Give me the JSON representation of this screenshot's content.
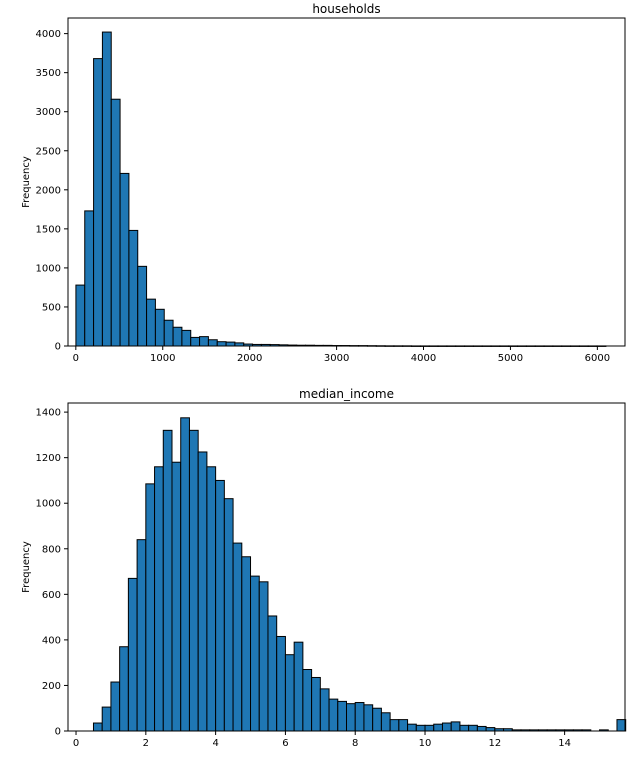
{
  "chart_data": [
    {
      "type": "bar",
      "title": "households",
      "xlabel": "",
      "ylabel": "Frequency",
      "xlim": [
        -90,
        6318
      ],
      "ylim": [
        0,
        4200
      ],
      "bin_start": 1,
      "bin_width": 101.62,
      "values": [
        780,
        1730,
        3680,
        4020,
        3160,
        2210,
        1480,
        1020,
        600,
        470,
        330,
        240,
        200,
        110,
        120,
        80,
        55,
        50,
        40,
        25,
        20,
        20,
        18,
        15,
        12,
        10,
        10,
        8,
        8,
        6,
        6,
        5,
        5,
        4,
        3,
        2,
        2,
        2,
        1,
        1,
        1,
        1,
        1,
        1,
        1,
        1,
        1,
        1,
        1,
        1,
        1,
        1,
        1,
        1,
        1,
        1,
        1,
        1,
        1,
        1
      ],
      "xticks": [
        0,
        1000,
        2000,
        3000,
        4000,
        5000,
        6000
      ],
      "yticks": [
        0,
        500,
        1000,
        1500,
        2000,
        2500,
        3000,
        3500,
        4000
      ],
      "bar_color": "#1f77b4",
      "edge_color": "#000000",
      "grid": false
    },
    {
      "type": "bar",
      "title": "median_income",
      "xlabel": "",
      "ylabel": "Frequency",
      "xlim": [
        -0.23,
        15.73
      ],
      "ylim": [
        0,
        1440
      ],
      "bin_start": 0.5,
      "bin_width": 0.25,
      "values": [
        35,
        105,
        215,
        370,
        670,
        840,
        1085,
        1160,
        1320,
        1180,
        1375,
        1320,
        1225,
        1160,
        1100,
        1020,
        825,
        765,
        680,
        655,
        505,
        415,
        335,
        390,
        270,
        235,
        185,
        140,
        130,
        120,
        125,
        115,
        100,
        80,
        50,
        50,
        30,
        25,
        25,
        30,
        35,
        40,
        25,
        25,
        20,
        15,
        10,
        10,
        5,
        5,
        5,
        5,
        5,
        5,
        5,
        5,
        5,
        0,
        5,
        0,
        50
      ],
      "xticks": [
        0,
        2,
        4,
        6,
        8,
        10,
        12,
        14
      ],
      "yticks": [
        0,
        200,
        400,
        600,
        800,
        1000,
        1200,
        1400
      ],
      "bar_color": "#1f77b4",
      "edge_color": "#000000",
      "grid": false
    }
  ]
}
